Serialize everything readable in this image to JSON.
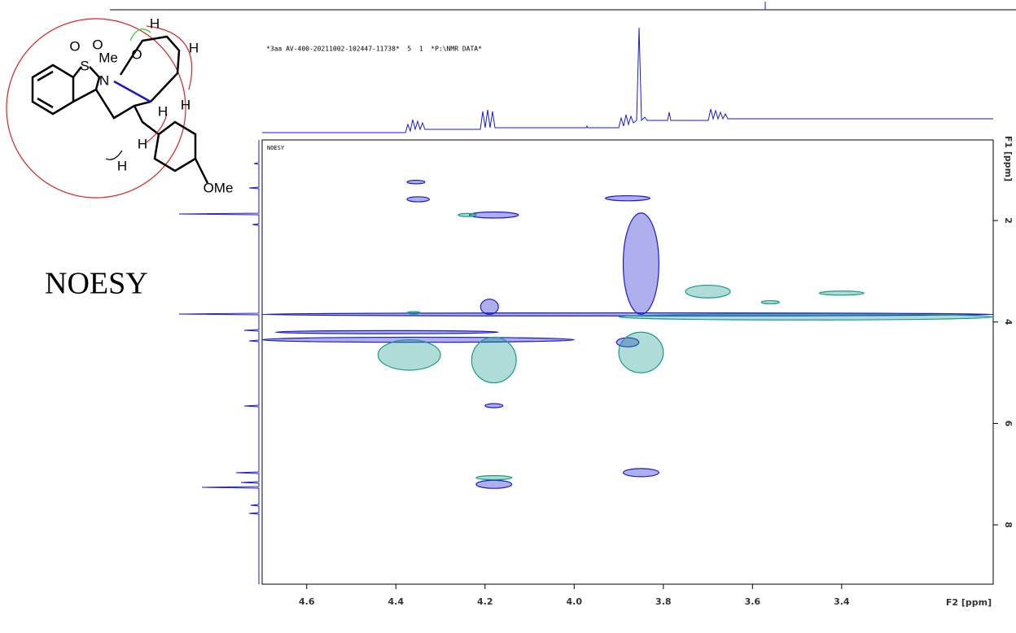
{
  "header": "*3aa AV-400-20211002-102447-11738*  5  1  *P:\\NMR DATA*",
  "label": "NOESY",
  "structure": {
    "labels": [
      "O",
      "O",
      "S",
      "Me",
      "N",
      "O",
      "H",
      "H",
      "H",
      "H",
      "H",
      "H",
      "OMe"
    ]
  },
  "chart_data": {
    "type": "contour",
    "title": "NOESY",
    "xlabel": "F2 [ppm]",
    "ylabel": "F1 [ppm]",
    "xlim": [
      4.7,
      3.06
    ],
    "ylim": [
      0.41,
      9.17
    ],
    "xticks": [
      4.6,
      4.4,
      4.2,
      {
        "value": 4,
        "label": "4.0"
      },
      3.8,
      3.6,
      3.4
    ],
    "yticks": [
      2,
      4,
      6,
      8
    ],
    "series": [
      {
        "color": "#1a1acc",
        "x": [
          4.355,
          4.35,
          4.18,
          3.88,
          3.85,
          4.18,
          4.18,
          3.85,
          3.88,
          3.88,
          4.35,
          4.42,
          4.19
        ],
        "y": [
          1.24,
          1.58,
          1.89,
          1.56,
          2.85,
          5.65,
          7.2,
          6.97,
          4.4,
          3.85,
          4.35,
          4.2,
          3.7
        ],
        "width": [
          0.04,
          0.05,
          0.11,
          0.1,
          0.08,
          0.04,
          0.08,
          0.08,
          0.05,
          1.64,
          0.7,
          0.5,
          0.04
        ],
        "height": [
          0.07,
          0.1,
          0.12,
          0.1,
          2.0,
          0.08,
          0.16,
          0.16,
          0.18,
          0.06,
          0.1,
          0.06,
          0.3
        ]
      },
      {
        "color": "#1a9a8a",
        "x": [
          4.24,
          4.18,
          3.7,
          3.56,
          3.4,
          3.48,
          4.37,
          4.18,
          3.85,
          4.36
        ],
        "y": [
          1.89,
          7.07,
          3.4,
          3.61,
          3.43,
          3.9,
          4.65,
          4.75,
          4.6,
          3.82
        ],
        "width": [
          0.04,
          0.08,
          0.1,
          0.04,
          0.1,
          0.84,
          0.14,
          0.1,
          0.1,
          0.03
        ],
        "height": [
          0.06,
          0.08,
          0.25,
          0.06,
          0.08,
          0.12,
          0.6,
          0.9,
          0.8,
          0.05
        ]
      }
    ]
  }
}
